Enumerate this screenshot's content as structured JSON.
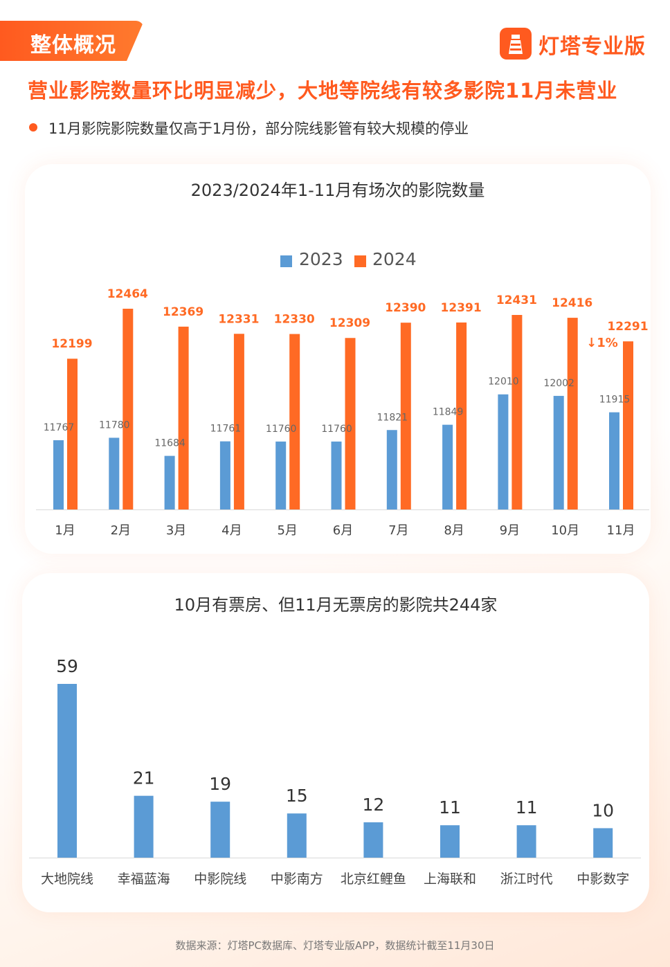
{
  "header": {
    "tag": "整体概况",
    "brand": "灯塔专业版",
    "headline": "营业影院数量环比明显减少，大地等院线有较多影院11月未营业",
    "bullet": "11月影院影院数量仅高于1月份，部分院线影管有较大规模的停业"
  },
  "colors": {
    "accent": "#ff5a1f",
    "series_2023": "#5b9bd5",
    "series_2024": "#ff6a24"
  },
  "chart_data": [
    {
      "type": "bar",
      "title": "2023/2024年1-11月有场次的影院数量",
      "categories": [
        "1月",
        "2月",
        "3月",
        "4月",
        "5月",
        "6月",
        "7月",
        "8月",
        "9月",
        "10月",
        "11月"
      ],
      "series": [
        {
          "name": "2023",
          "values": [
            11767,
            11780,
            11684,
            11761,
            11760,
            11760,
            11821,
            11849,
            12010,
            12002,
            11915
          ]
        },
        {
          "name": "2024",
          "values": [
            12199,
            12464,
            12369,
            12331,
            12330,
            12309,
            12390,
            12391,
            12431,
            12416,
            12291
          ]
        }
      ],
      "annotation": "↓1%",
      "legend": "top-center"
    },
    {
      "type": "bar",
      "title": "10月有票房、但11月无票房的影院共244家",
      "categories": [
        "大地院线",
        "幸福蓝海",
        "中影院线",
        "中影南方",
        "北京红鲤鱼",
        "上海联和",
        "浙江时代",
        "中影数字"
      ],
      "values": [
        59,
        21,
        19,
        15,
        12,
        11,
        11,
        10
      ]
    }
  ],
  "footer": "数据来源：灯塔PC数据库、灯塔专业版APP，数据统计截至11月30日"
}
